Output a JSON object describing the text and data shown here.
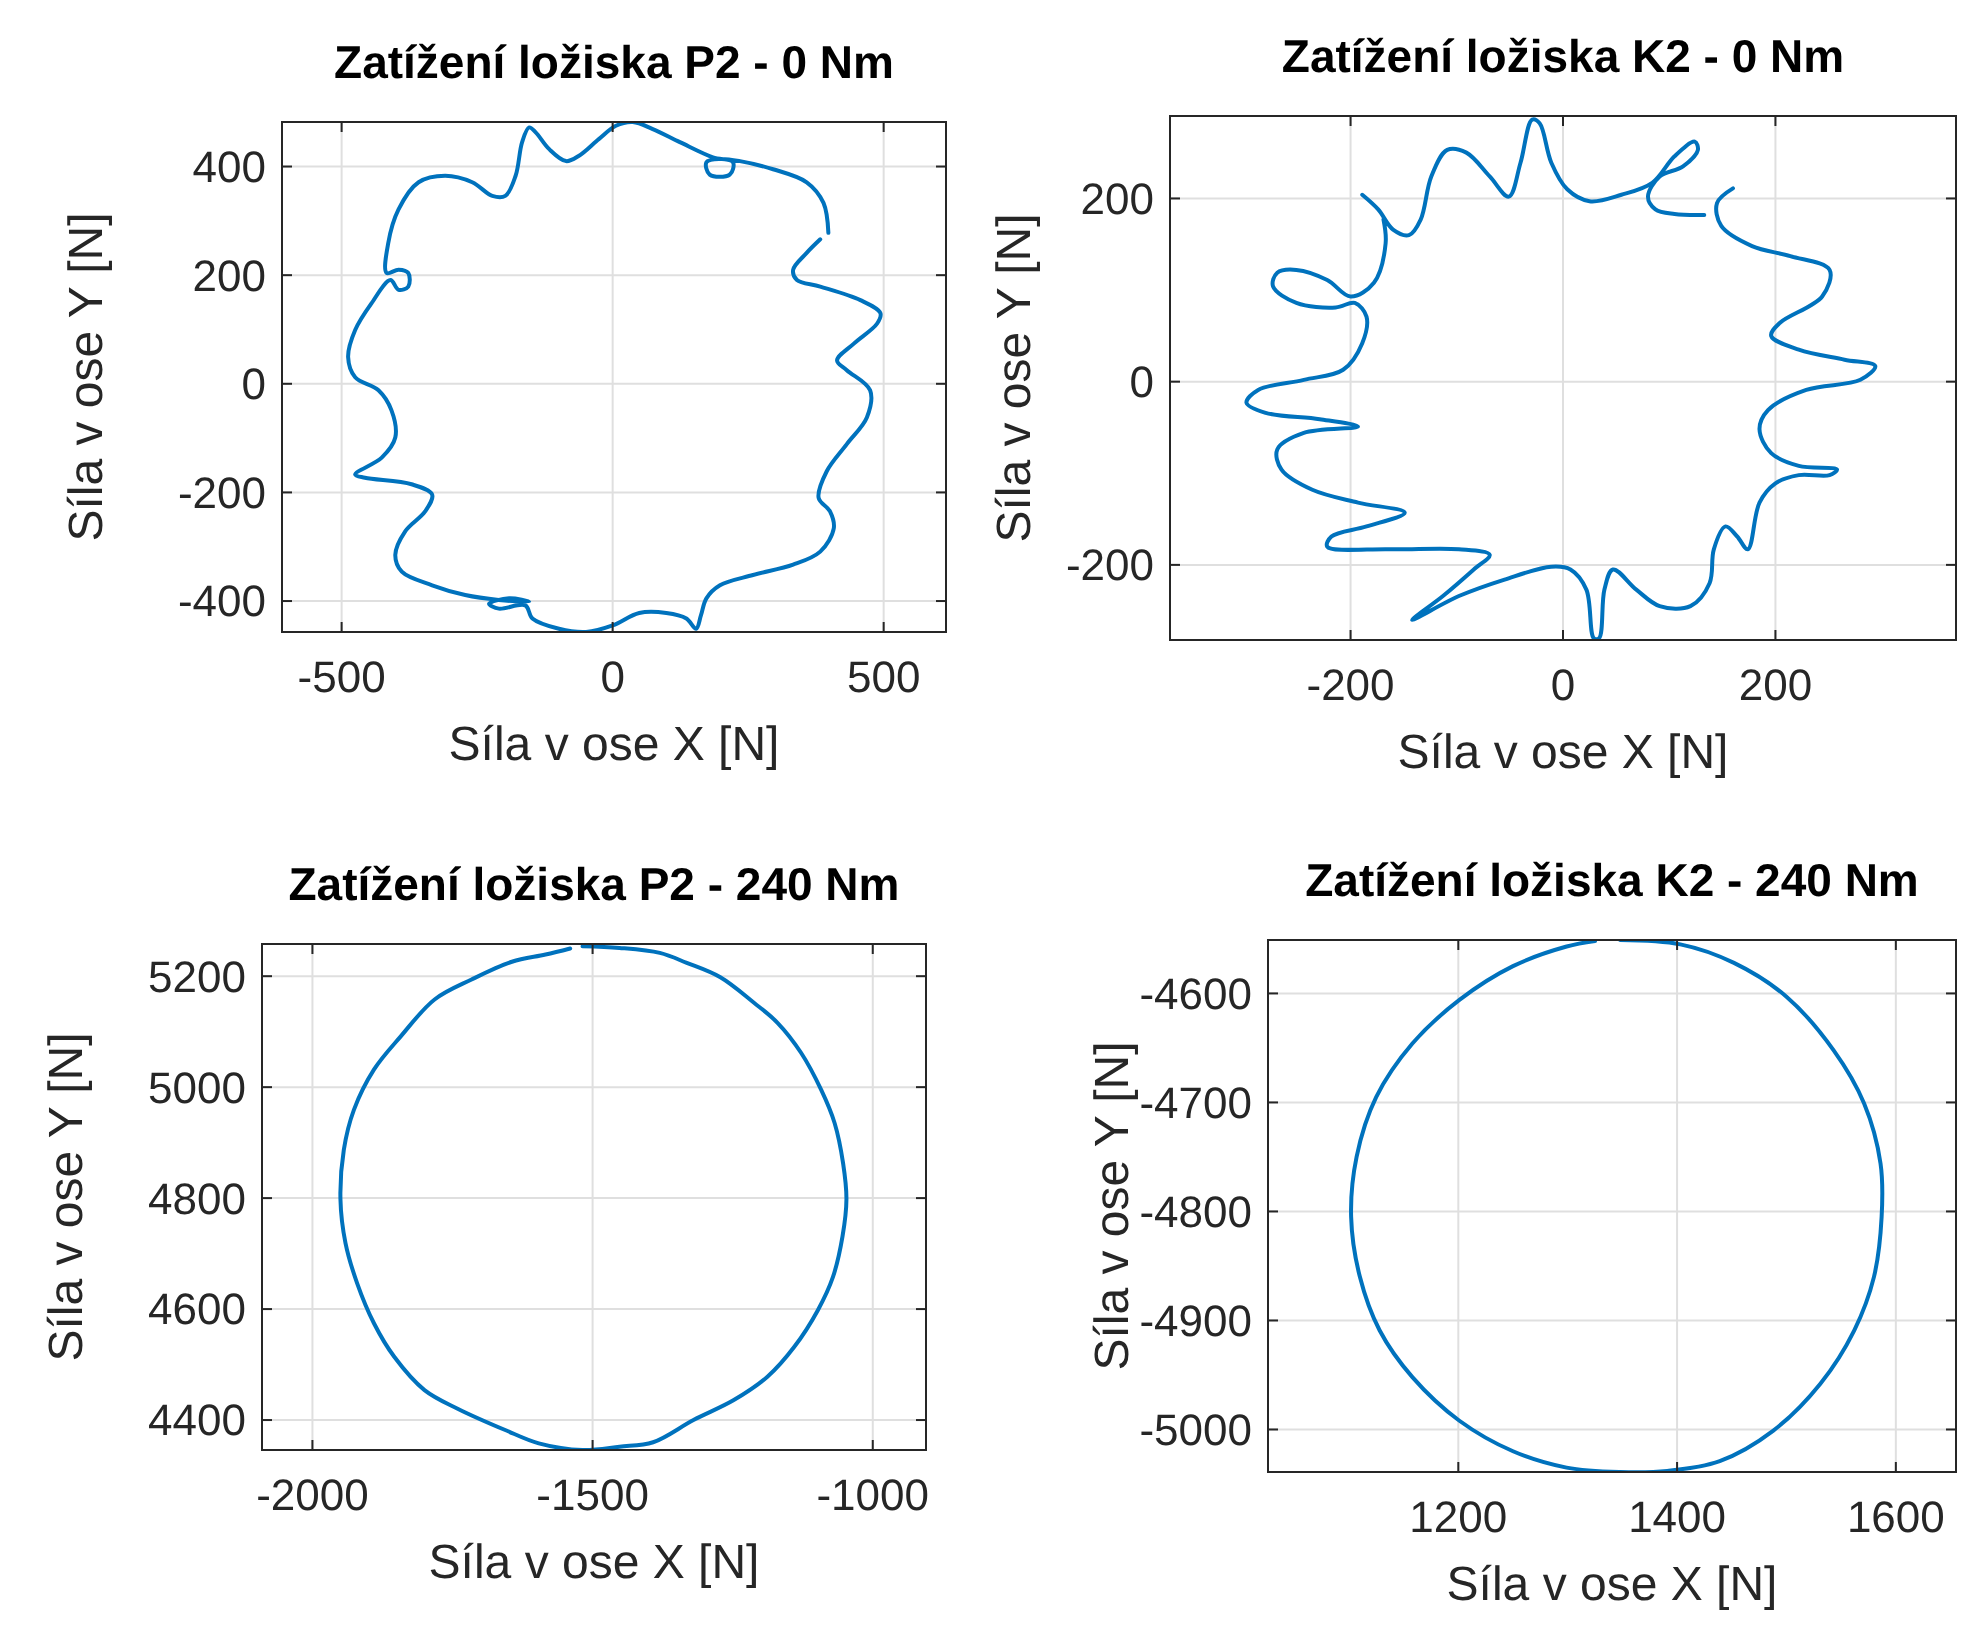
{
  "chart_data": [
    {
      "type": "line",
      "title": "Zatížení ložiska P2 - 0 Nm",
      "xlabel": "Síla v ose X [N]",
      "ylabel": "Síla v ose Y [N]",
      "xlim": [
        -610,
        615
      ],
      "ylim": [
        -457,
        482
      ],
      "xticks": [
        -500,
        0,
        500
      ],
      "yticks": [
        -400,
        -200,
        0,
        200,
        400
      ],
      "grid": true,
      "series": [
        {
          "color": "#0072bd",
          "x": [
            398,
            389,
            358,
            296,
            235,
            198,
            173,
            179,
            216,
            222,
            185,
            124,
            74,
            37,
            6,
            -25,
            -62,
            -86,
            -117,
            -142,
            -154,
            -167,
            -179,
            -198,
            -222,
            -259,
            -309,
            -358,
            -395,
            -414,
            -417,
            -395,
            -377,
            -377,
            -395,
            -410,
            -445,
            -475,
            -488,
            -475,
            -432,
            -408,
            -401,
            -426,
            -475,
            -457,
            -371,
            -333,
            -346,
            -383,
            -401,
            -389,
            -333,
            -272,
            -210,
            -154,
            -191,
            -228,
            -210,
            -161,
            -148,
            -99,
            -49,
            0,
            49,
            99,
            136,
            154,
            163,
            173,
            198,
            259,
            333,
            383,
            408,
            401,
            380,
            395,
            432,
            469,
            475,
            432,
            414,
            445,
            488,
            494,
            457,
            383,
            340,
            333,
            358,
            383
          ],
          "values": [
            278,
            333,
            371,
            395,
            410,
            414,
            408,
            385,
            385,
            408,
            417,
            445,
            469,
            482,
            475,
            451,
            420,
            410,
            432,
            463,
            472,
            445,
            383,
            346,
            346,
            371,
            383,
            371,
            321,
            259,
            204,
            210,
            204,
            179,
            173,
            191,
            148,
            99,
            49,
            12,
            -12,
            -49,
            -99,
            -136,
            -167,
            -173,
            -185,
            -204,
            -235,
            -272,
            -315,
            -346,
            -371,
            -389,
            -398,
            -401,
            -395,
            -405,
            -414,
            -408,
            -432,
            -451,
            -457,
            -445,
            -422,
            -422,
            -432,
            -451,
            -426,
            -395,
            -371,
            -352,
            -333,
            -309,
            -266,
            -235,
            -210,
            -161,
            -111,
            -62,
            -12,
            25,
            43,
            74,
            111,
            130,
            154,
            179,
            191,
            210,
            241,
            266
          ]
        }
      ]
    },
    {
      "type": "line",
      "title": "Zatížení ložiska K2 - 0 Nm",
      "xlabel": "Síla v ose X [N]",
      "ylabel": "Síla v ose Y [N]",
      "xlim": [
        -370,
        370
      ],
      "ylim": [
        -282,
        290
      ],
      "xticks": [
        -200,
        0,
        200
      ],
      "yticks": [
        -200,
        0,
        200
      ],
      "grid": true,
      "series": [
        {
          "color": "#0072bd",
          "x": [
            -189,
            -174,
            -160,
            -145,
            -134,
            -124,
            -109,
            -91,
            -69,
            -51,
            -40,
            -29,
            -22,
            -11,
            4,
            25,
            55,
            84,
            105,
            124,
            127,
            113,
            91,
            80,
            87,
            105,
            133,
            null,
            160,
            145,
            149,
            178,
            214,
            251,
            244,
            204,
            196,
            222,
            265,
            294,
            280,
            229,
            193,
            185,
            196,
            222,
            258,
            251,
            222,
            200,
            185,
            174,
            164,
            153,
            142,
            138,
            120,
            91,
            69,
            47,
            39,
            34,
            29,
            22,
            7,
            -11,
            -55,
            -98,
            -142,
            -113,
            -84,
            -69,
            -98,
            -164,
            -222,
            -218,
            -185,
            -149,
            -193,
            -236,
            -265,
            -269,
            -244,
            -193,
            -229,
            -280,
            -298,
            -287,
            -244,
            -207,
            -189,
            -185,
            -196,
            -214,
            -251,
            -273,
            -269,
            -251,
            -222,
            -200,
            -178,
            -167,
            -169
          ],
          "values": [
            204,
            188,
            166,
            160,
            177,
            224,
            253,
            250,
            224,
            202,
            239,
            286,
            282,
            239,
            210,
            197,
            204,
            217,
            246,
            262,
            253,
            235,
            224,
            202,
            188,
            183,
            182,
            null,
            211,
            195,
            170,
            148,
            137,
            122,
            93,
            64,
            50,
            35,
            24,
            17,
            2,
            -9,
            -31,
            -52,
            -78,
            -92,
            -96,
            -102,
            -102,
            -111,
            -132,
            -183,
            -169,
            -158,
            -183,
            -220,
            -245,
            -245,
            -227,
            -205,
            -227,
            -280,
            -280,
            -227,
            -205,
            -202,
            -216,
            -234,
            -260,
            -234,
            -205,
            -189,
            -183,
            -183,
            -180,
            -169,
            -158,
            -143,
            -132,
            -118,
            -96,
            -74,
            -56,
            -49,
            -41,
            -34,
            -23,
            -9,
            2,
            13,
            42,
            71,
            86,
            81,
            86,
            104,
            119,
            122,
            111,
            93,
            108,
            151,
            177
          ]
        }
      ]
    },
    {
      "type": "line",
      "title": "Zatížení ložiska P2 - 240 Nm",
      "xlabel": "Síla v ose X [N]",
      "ylabel": "Síla v ose Y [N]",
      "xlim": [
        -2090,
        -905
      ],
      "ylim": [
        4346,
        5258
      ],
      "xticks": [
        -2000,
        -1500,
        -1000
      ],
      "yticks": [
        4400,
        4600,
        4800,
        5000,
        5200
      ],
      "grid": true,
      "series": [
        {
          "color": "#0072bd",
          "x": [
            -1518,
            -1452,
            -1380,
            -1332,
            -1272,
            -1212,
            -1170,
            -1128,
            -1092,
            -1068,
            -1053,
            -1047,
            -1054,
            -1071,
            -1098,
            -1140,
            -1188,
            -1248,
            -1320,
            -1392,
            -1452,
            -1518,
            -1596,
            -1656,
            -1740,
            -1800,
            -1854,
            -1890,
            -1920,
            -1941,
            -1950,
            -1944,
            -1926,
            -1890,
            -1842,
            -1782,
            -1716,
            -1644,
            -1584,
            -1540
          ],
          "values": [
            5254,
            5251,
            5242,
            5224,
            5198,
            5152,
            5116,
            5062,
            4995,
            4935,
            4863,
            4798,
            4731,
            4658,
            4598,
            4532,
            4478,
            4436,
            4400,
            4360,
            4352,
            4346,
            4358,
            4382,
            4420,
            4454,
            4514,
            4574,
            4646,
            4719,
            4798,
            4887,
            4959,
            5032,
            5092,
            5158,
            5194,
            5226,
            5239,
            5250
          ]
        }
      ]
    },
    {
      "type": "line",
      "title": "Zatížení ložiska K2 - 240 Nm",
      "xlabel": "Síla v ose X [N]",
      "ylabel": "Síla v ose Y [N]",
      "xlim": [
        1026,
        1655
      ],
      "ylim": [
        -5039,
        -4551
      ],
      "xticks": [
        1200,
        1400,
        1600
      ],
      "yticks": [
        -5000,
        -4900,
        -4800,
        -4700,
        -4600
      ],
      "grid": true,
      "series": [
        {
          "color": "#0072bd",
          "x": [
            1348,
            1403,
            1452,
            1500,
            1543,
            1571,
            1586,
            1587,
            1580,
            1562,
            1531,
            1488,
            1439,
            1391,
            1348,
            1299,
            1250,
            1201,
            1158,
            1128,
            1110,
            1102,
            1107,
            1125,
            1158,
            1201,
            1250,
            1299,
            1325
          ],
          "values": [
            -4551,
            -4555,
            -4572,
            -4603,
            -4652,
            -4701,
            -4756,
            -4805,
            -4860,
            -4909,
            -4958,
            -5001,
            -5029,
            -5038,
            -5039,
            -5035,
            -5020,
            -4992,
            -4952,
            -4909,
            -4860,
            -4805,
            -4750,
            -4695,
            -4646,
            -4606,
            -4575,
            -4557,
            -4552
          ]
        }
      ]
    }
  ]
}
